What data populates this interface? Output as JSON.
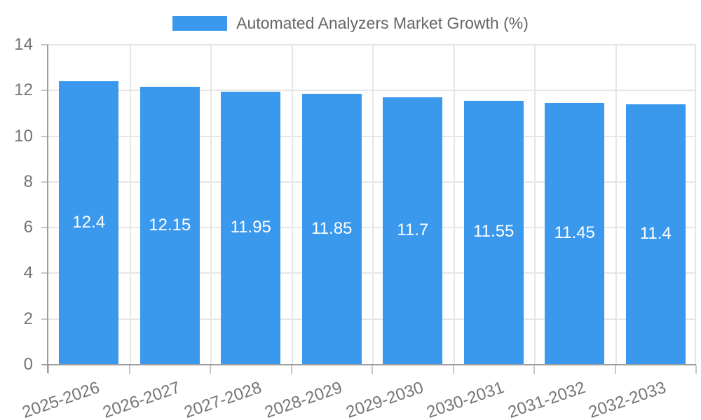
{
  "legend": {
    "label": "Automated Analyzers Market Growth (%)"
  },
  "colors": {
    "bar": "#3b99ed",
    "grid": "#e6e6e6",
    "axis": "#9c9c9c",
    "tick_mark": "#c6c6c6",
    "tick_text": "#757575",
    "legend_text": "#666666",
    "bar_label_text": "#ffffff",
    "background": "#ffffff"
  },
  "chart_data": {
    "type": "bar",
    "title": "Automated Analyzers Market Growth (%)",
    "categories": [
      "2025-2026",
      "2026-2027",
      "2027-2028",
      "2028-2029",
      "2029-2030",
      "2030-2031",
      "2031-2032",
      "2032-2033"
    ],
    "values": [
      12.4,
      12.15,
      11.95,
      11.85,
      11.7,
      11.55,
      11.45,
      11.4
    ],
    "value_labels": [
      "12.4",
      "12.15",
      "11.95",
      "11.85",
      "11.7",
      "11.55",
      "11.45",
      "11.4"
    ],
    "xlabel": "",
    "ylabel": "",
    "ylim": [
      0,
      14
    ],
    "ytick_step": 2,
    "ytick_labels": [
      "0",
      "2",
      "4",
      "6",
      "8",
      "10",
      "12",
      "14"
    ],
    "grid": true,
    "legend_position": "top"
  }
}
